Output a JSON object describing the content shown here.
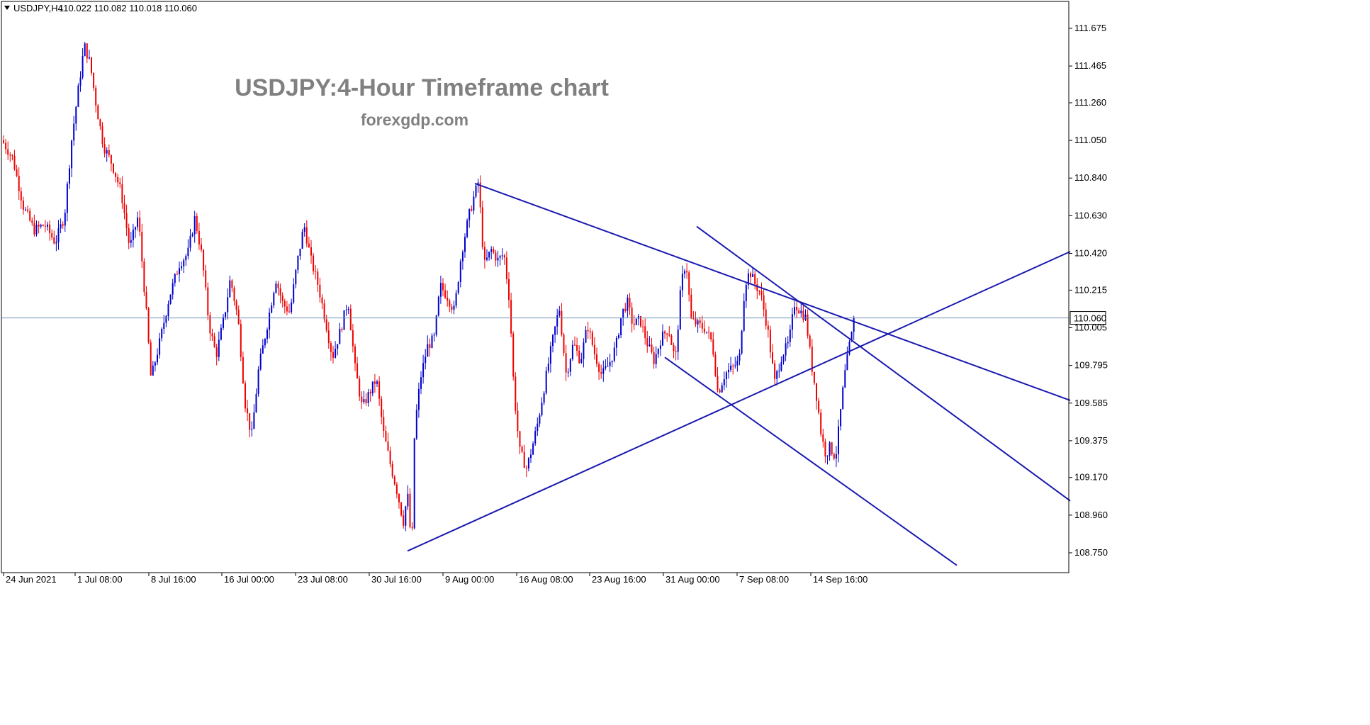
{
  "header": {
    "symbol_label": "USDJPY,H4",
    "ohlc": "110.022 110.082 110.018 110.060",
    "dropdown_icon": "triangle-down-icon"
  },
  "overlay": {
    "title": "USDJPY:4-Hour Timeframe chart",
    "subtitle": "forexgdp.com"
  },
  "colors": {
    "bull": "#0000cc",
    "bear": "#ee0000",
    "trendline": "#1a1ab0",
    "price_line": "#6f8fb5",
    "price_tag_border": "#000000",
    "title": "#808080"
  },
  "chart_data": {
    "type": "candlestick",
    "timeframe": "H4",
    "symbol": "USDJPY",
    "current_price": 110.06,
    "current_price_label": "110.060",
    "y_ticks": [
      "111.675",
      "111.465",
      "111.260",
      "111.050",
      "110.840",
      "110.630",
      "110.420",
      "110.215",
      "110.005",
      "109.795",
      "109.585",
      "109.375",
      "109.170",
      "108.960",
      "108.750"
    ],
    "x_ticks": [
      "24 Jun 2021",
      "1 Jul 08:00",
      "8 Jul 16:00",
      "16 Jul 00:00",
      "23 Jul 08:00",
      "30 Jul 16:00",
      "9 Aug 00:00",
      "16 Aug 08:00",
      "23 Aug 16:00",
      "31 Aug 00:00",
      "7 Sep 08:00",
      "14 Sep 16:00"
    ],
    "price_path": [
      [
        0,
        111.05
      ],
      [
        15,
        110.95
      ],
      [
        30,
        110.68
      ],
      [
        45,
        110.55
      ],
      [
        60,
        110.58
      ],
      [
        75,
        110.48
      ],
      [
        88,
        110.63
      ],
      [
        98,
        111.05
      ],
      [
        108,
        111.35
      ],
      [
        116,
        111.58
      ],
      [
        124,
        111.48
      ],
      [
        133,
        111.24
      ],
      [
        143,
        111.02
      ],
      [
        155,
        110.92
      ],
      [
        168,
        110.76
      ],
      [
        180,
        110.45
      ],
      [
        192,
        110.63
      ],
      [
        204,
        110.06
      ],
      [
        210,
        109.72
      ],
      [
        222,
        109.92
      ],
      [
        236,
        110.18
      ],
      [
        250,
        110.36
      ],
      [
        262,
        110.42
      ],
      [
        272,
        110.62
      ],
      [
        282,
        110.4
      ],
      [
        292,
        110.02
      ],
      [
        302,
        109.85
      ],
      [
        314,
        110.08
      ],
      [
        322,
        110.28
      ],
      [
        333,
        110.05
      ],
      [
        343,
        109.58
      ],
      [
        352,
        109.4
      ],
      [
        362,
        109.78
      ],
      [
        374,
        110.02
      ],
      [
        386,
        110.28
      ],
      [
        396,
        110.14
      ],
      [
        406,
        110.09
      ],
      [
        416,
        110.36
      ],
      [
        426,
        110.58
      ],
      [
        436,
        110.38
      ],
      [
        446,
        110.24
      ],
      [
        456,
        110.05
      ],
      [
        466,
        109.84
      ],
      [
        478,
        110.0
      ],
      [
        488,
        110.16
      ],
      [
        498,
        109.78
      ],
      [
        508,
        109.56
      ],
      [
        518,
        109.64
      ],
      [
        528,
        109.72
      ],
      [
        538,
        109.42
      ],
      [
        548,
        109.24
      ],
      [
        558,
        109.08
      ],
      [
        566,
        108.92
      ],
      [
        572,
        109.08
      ],
      [
        578,
        108.76
      ],
      [
        582,
        109.44
      ],
      [
        590,
        109.72
      ],
      [
        600,
        109.9
      ],
      [
        610,
        109.95
      ],
      [
        618,
        110.24
      ],
      [
        628,
        110.18
      ],
      [
        638,
        110.1
      ],
      [
        648,
        110.42
      ],
      [
        658,
        110.62
      ],
      [
        666,
        110.74
      ],
      [
        672,
        110.82
      ],
      [
        680,
        110.35
      ],
      [
        690,
        110.44
      ],
      [
        700,
        110.38
      ],
      [
        708,
        110.42
      ],
      [
        716,
        110.15
      ],
      [
        722,
        109.66
      ],
      [
        730,
        109.32
      ],
      [
        740,
        109.22
      ],
      [
        748,
        109.34
      ],
      [
        756,
        109.48
      ],
      [
        766,
        109.7
      ],
      [
        776,
        109.92
      ],
      [
        786,
        110.12
      ],
      [
        796,
        109.74
      ],
      [
        806,
        109.92
      ],
      [
        816,
        109.82
      ],
      [
        826,
        110.02
      ],
      [
        836,
        109.86
      ],
      [
        846,
        109.74
      ],
      [
        856,
        109.8
      ],
      [
        866,
        109.9
      ],
      [
        874,
        110.08
      ],
      [
        882,
        110.15
      ],
      [
        890,
        110.02
      ],
      [
        900,
        110.05
      ],
      [
        910,
        109.92
      ],
      [
        920,
        109.82
      ],
      [
        930,
        109.95
      ],
      [
        940,
        110.0
      ],
      [
        950,
        109.82
      ],
      [
        958,
        110.25
      ],
      [
        965,
        110.38
      ],
      [
        972,
        110.05
      ],
      [
        982,
        110.02
      ],
      [
        992,
        110.0
      ],
      [
        1002,
        109.92
      ],
      [
        1010,
        109.64
      ],
      [
        1020,
        109.75
      ],
      [
        1030,
        109.78
      ],
      [
        1040,
        109.82
      ],
      [
        1048,
        110.25
      ],
      [
        1055,
        110.32
      ],
      [
        1062,
        110.25
      ],
      [
        1070,
        110.2
      ],
      [
        1080,
        110.0
      ],
      [
        1090,
        109.7
      ],
      [
        1100,
        109.85
      ],
      [
        1110,
        109.92
      ],
      [
        1118,
        110.14
      ],
      [
        1126,
        110.1
      ],
      [
        1134,
        110.06
      ],
      [
        1142,
        109.8
      ],
      [
        1150,
        109.6
      ],
      [
        1156,
        109.4
      ],
      [
        1162,
        109.3
      ],
      [
        1168,
        109.34
      ],
      [
        1176,
        109.28
      ],
      [
        1182,
        109.5
      ],
      [
        1188,
        109.72
      ],
      [
        1196,
        109.92
      ],
      [
        1204,
        110.06
      ]
    ],
    "trendlines": [
      {
        "from": [
          "9 Aug 00:00",
          110.81
        ],
        "to": [
          "extends right",
          109.6
        ]
      },
      {
        "from": [
          "30 Jul 16:00",
          108.76
        ],
        "to": [
          "extends right",
          110.43
        ]
      },
      {
        "from": [
          "31 Aug 00:00",
          110.57
        ],
        "to": [
          "extends right",
          109.04
        ]
      },
      {
        "from": [
          "31 Aug 00:00",
          109.84
        ],
        "to": [
          "14 Sep 16:00",
          108.68
        ]
      }
    ]
  }
}
